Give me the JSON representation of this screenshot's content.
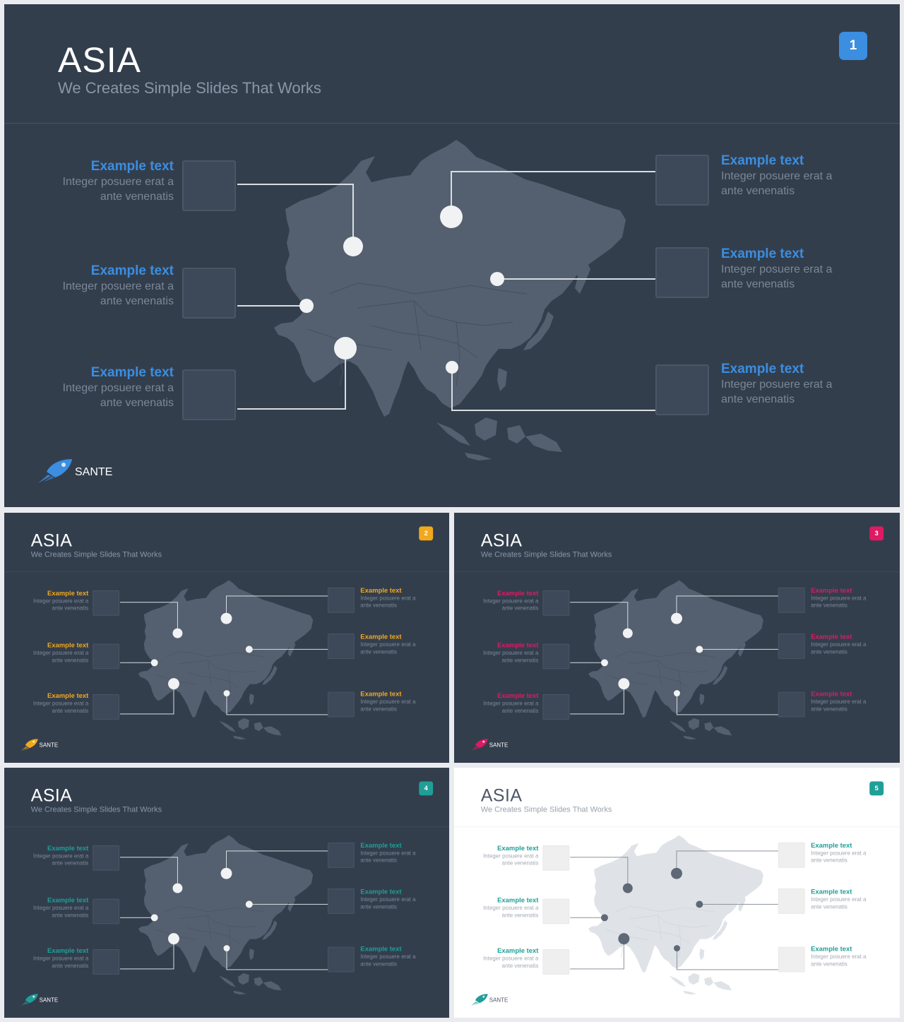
{
  "slides": [
    {
      "number": "1",
      "title": "ASIA",
      "subtitle": "We Creates Simple Slides That Works",
      "accent": "#3b8ee0",
      "theme": "dark",
      "brand": "SANTE"
    },
    {
      "number": "2",
      "title": "ASIA",
      "subtitle": "We Creates Simple Slides That Works",
      "accent": "#f2a81d",
      "theme": "dark",
      "brand": "SANTE"
    },
    {
      "number": "3",
      "title": "ASIA",
      "subtitle": "We Creates Simple Slides That Works",
      "accent": "#dd1a63",
      "theme": "dark",
      "brand": "SANTE"
    },
    {
      "number": "4",
      "title": "ASIA",
      "subtitle": "We Creates Simple Slides That Works",
      "accent": "#1f9f98",
      "theme": "dark",
      "brand": "SANTE"
    },
    {
      "number": "5",
      "title": "ASIA",
      "subtitle": "We Creates Simple Slides That Works",
      "accent": "#1f9f98",
      "theme": "light",
      "brand": "SANTE"
    }
  ],
  "callouts": [
    {
      "title": "Example text",
      "desc1": "Integer posuere erat a",
      "desc2": "ante venenatis"
    },
    {
      "title": "Example text",
      "desc1": "Integer posuere erat a",
      "desc2": "ante venenatis"
    },
    {
      "title": "Example text",
      "desc1": "Integer posuere erat a",
      "desc2": "ante venenatis"
    },
    {
      "title": "Example text",
      "desc1": "Integer posuere erat a",
      "desc2": "ante venenatis"
    },
    {
      "title": "Example text",
      "desc1": "Integer posuere erat a",
      "desc2": "ante venenatis"
    },
    {
      "title": "Example text",
      "desc1": "Integer posuere erat a",
      "desc2": "ante venenatis"
    }
  ]
}
